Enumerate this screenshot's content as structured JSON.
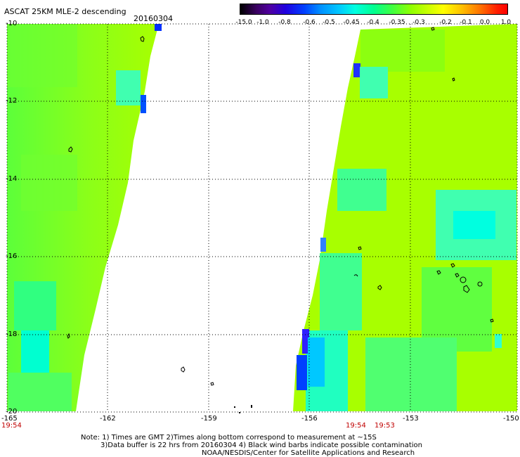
{
  "header": {
    "title": "ASCAT 25KM MLE-2 descending",
    "date": "20160304"
  },
  "colorbar": {
    "ticks": [
      "-15.0",
      "-1.0",
      "-0.8",
      "-0.6",
      "-0.5",
      "-0.45",
      "-0.4",
      "-0.35",
      "-0.3",
      "-0.2",
      "-0.1",
      "0.0",
      "1.0"
    ]
  },
  "map": {
    "lat_labels": [
      "-10",
      "-12",
      "-14",
      "-16",
      "-18",
      "-20"
    ],
    "lon_labels": [
      "-165",
      "-162",
      "-159",
      "-156",
      "-153",
      "-150"
    ],
    "time_labels": [
      "19:54",
      "19:54",
      "19:53"
    ],
    "colors": {
      "mle_fill": "#a8ff00",
      "mle_mid": "#70ff20",
      "mle_low": "#30ff60",
      "mle_lower": "#00ffc8",
      "mle_lowest": "#0050ff"
    }
  },
  "note": {
    "line1": "Note: 1) Times are GMT 2)Times along bottom correspond to measurement at ~15S",
    "line2": "3)Data buffer is 22 hrs from 20160304 4) Black wind barbs indicate possible contamination",
    "line3": "NOAA/NESDIS/Center for Satellite Applications and Research"
  }
}
